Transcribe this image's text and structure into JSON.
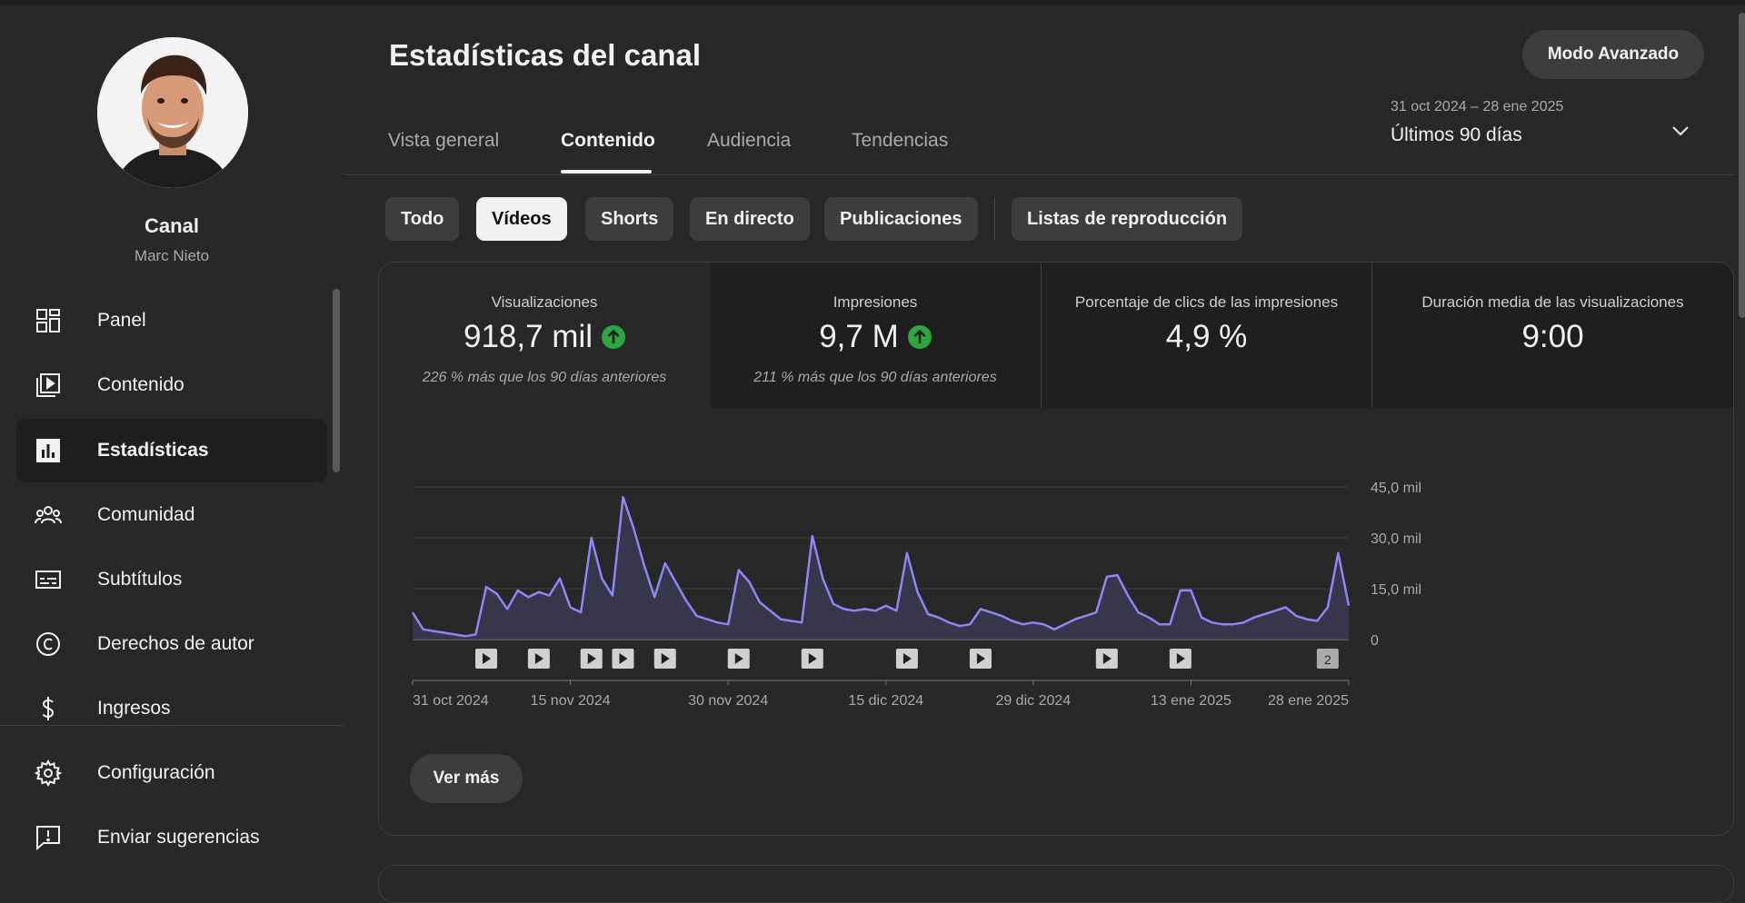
{
  "sidebar": {
    "channel_label": "Canal",
    "channel_owner": "Marc Nieto",
    "items": [
      {
        "label": "Panel",
        "icon": "dashboard-icon"
      },
      {
        "label": "Contenido",
        "icon": "content-icon"
      },
      {
        "label": "Estadísticas",
        "icon": "analytics-icon",
        "active": true
      },
      {
        "label": "Comunidad",
        "icon": "community-icon"
      },
      {
        "label": "Subtítulos",
        "icon": "subtitles-icon"
      },
      {
        "label": "Derechos de autor",
        "icon": "copyright-icon"
      },
      {
        "label": "Ingresos",
        "icon": "earn-icon"
      },
      {
        "label": "Configuración",
        "icon": "settings-icon"
      },
      {
        "label": "Enviar sugerencias",
        "icon": "feedback-icon"
      }
    ]
  },
  "header": {
    "title": "Estadísticas del canal",
    "advanced_mode": "Modo Avanzado",
    "tabs": [
      {
        "label": "Vista general"
      },
      {
        "label": "Contenido",
        "active": true
      },
      {
        "label": "Audiencia"
      },
      {
        "label": "Tendencias"
      }
    ],
    "date_range": "31 oct 2024 – 28 ene 2025",
    "date_preset": "Últimos 90 días"
  },
  "filters": {
    "chips": [
      "Todo",
      "Vídeos",
      "Shorts",
      "En directo",
      "Publicaciones",
      "Listas de reproducción"
    ],
    "active": "Vídeos"
  },
  "metrics": [
    {
      "title": "Visualizaciones",
      "value": "918,7 mil",
      "trend": "up",
      "note": "226 % más que los 90 días anteriores"
    },
    {
      "title": "Impresiones",
      "value": "9,7 M",
      "trend": "up",
      "note": "211 % más que los 90 días anteriores"
    },
    {
      "title": "Porcentaje de clics de las impresiones",
      "value": "4,9 %",
      "trend": "",
      "note": ""
    },
    {
      "title": "Duración media de las visualizaciones",
      "value": "9:00",
      "trend": "",
      "note": ""
    }
  ],
  "colors": {
    "line": "#8e86f5",
    "trend_up": "#2ba640",
    "background": "#282828"
  },
  "chart_data": {
    "type": "area",
    "x_start": "31 oct 2024",
    "x_end": "28 ene 2025",
    "x_ticks": [
      "31 oct 2024",
      "15 nov 2024",
      "30 nov 2024",
      "15 dic 2024",
      "29 dic 2024",
      "13 ene 2025",
      "28 ene 2025"
    ],
    "x_tick_days": [
      0,
      15,
      30,
      45,
      59,
      74,
      89
    ],
    "y_ticks": [
      {
        "value": 0,
        "label": "0"
      },
      {
        "value": 15000,
        "label": "15,0 mil"
      },
      {
        "value": 30000,
        "label": "30,0 mil"
      },
      {
        "value": 45000,
        "label": "45,0 mil"
      }
    ],
    "ylim": [
      0,
      45000
    ],
    "grid": true,
    "series": [
      {
        "name": "",
        "values": [
          8000,
          3000,
          2500,
          2000,
          1500,
          1000,
          1500,
          15500,
          13500,
          9000,
          14500,
          12500,
          14000,
          13000,
          18000,
          9500,
          8000,
          30000,
          18000,
          13000,
          42000,
          33000,
          22000,
          12500,
          22500,
          17000,
          11500,
          7000,
          6000,
          5000,
          4500,
          20500,
          17000,
          11000,
          8500,
          6000,
          5500,
          5000,
          30500,
          18000,
          10500,
          9000,
          8500,
          9000,
          8500,
          10000,
          8500,
          25500,
          14000,
          7500,
          6500,
          5000,
          4000,
          4500,
          9000,
          8000,
          7000,
          5500,
          4500,
          5000,
          4500,
          3000,
          4500,
          6000,
          7000,
          8000,
          18500,
          19000,
          13000,
          8000,
          6500,
          4500,
          4500,
          14500,
          14500,
          6500,
          5000,
          4500,
          4500,
          5000,
          6500,
          7500,
          8500,
          9500,
          7000,
          6000,
          5500,
          9500,
          25500,
          10000
        ]
      }
    ],
    "publish_markers": [
      {
        "day": 7,
        "label": ""
      },
      {
        "day": 12,
        "label": ""
      },
      {
        "day": 17,
        "label": ""
      },
      {
        "day": 20,
        "label": ""
      },
      {
        "day": 24,
        "label": ""
      },
      {
        "day": 31,
        "label": ""
      },
      {
        "day": 38,
        "label": ""
      },
      {
        "day": 47,
        "label": ""
      },
      {
        "day": 54,
        "label": ""
      },
      {
        "day": 66,
        "label": ""
      },
      {
        "day": 73,
        "label": ""
      },
      {
        "day": 87,
        "label": "2"
      }
    ]
  },
  "footer": {
    "see_more": "Ver más"
  }
}
